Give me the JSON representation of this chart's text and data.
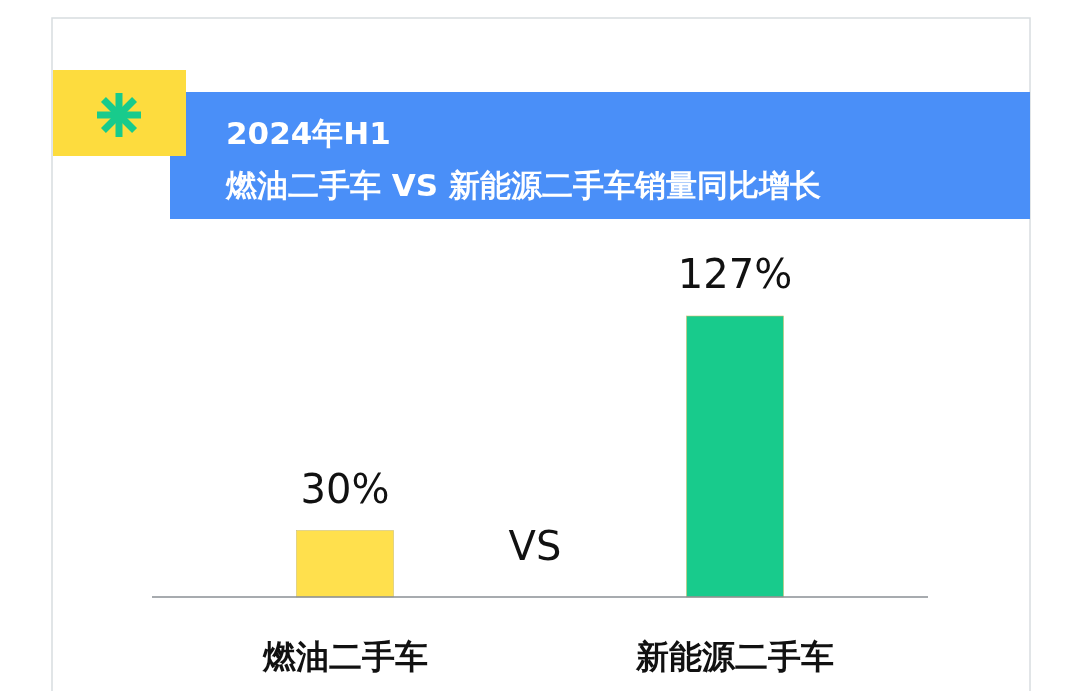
{
  "chart_data": {
    "type": "bar",
    "title": "2024年H1",
    "subtitle": "燃油二手车 VS 新能源二手车销量同比增长",
    "categories": [
      "燃油二手车",
      "新能源二手车"
    ],
    "values": [
      30,
      127
    ],
    "colors": [
      "#ffe04d",
      "#18cb8c"
    ],
    "value_labels": [
      "30%",
      "127%"
    ],
    "annotations": [
      "VS"
    ]
  }
}
